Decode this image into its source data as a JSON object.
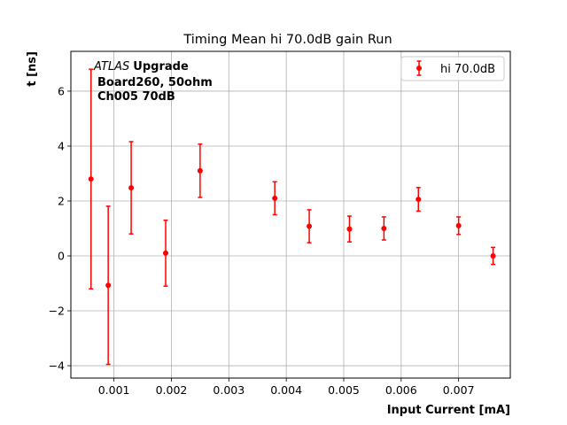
{
  "chart_data": {
    "type": "scatter",
    "title": "Timing Mean hi 70.0dB gain Run",
    "xlabel": "Input Current [mA]",
    "ylabel": "t [ns]",
    "xlim": [
      0.00025,
      0.0079
    ],
    "ylim": [
      -4.45,
      7.45
    ],
    "xticks": [
      0.001,
      0.002,
      0.003,
      0.004,
      0.005,
      0.006,
      0.007
    ],
    "xtick_labels": [
      "0.001",
      "0.002",
      "0.003",
      "0.004",
      "0.005",
      "0.006",
      "0.007"
    ],
    "yticks": [
      -4,
      -2,
      0,
      2,
      4,
      6
    ],
    "ytick_labels": [
      "−4",
      "−2",
      "0",
      "2",
      "4",
      "6"
    ],
    "grid": true,
    "legend_position": "top-right",
    "annotation": {
      "line1_italic": "ATLAS",
      "line1_bold": "Upgrade",
      "line2": "Board260, 50ohm",
      "line3": "Ch005 70dB"
    },
    "series": [
      {
        "name": "hi 70.0dB",
        "color": "#ff0000",
        "points": [
          {
            "x": 0.0006,
            "y": 2.8,
            "err": 4.0
          },
          {
            "x": 0.0009,
            "y": -1.07,
            "err": 2.88
          },
          {
            "x": 0.0013,
            "y": 2.48,
            "err": 1.68
          },
          {
            "x": 0.0019,
            "y": 0.1,
            "err": 1.2
          },
          {
            "x": 0.0025,
            "y": 3.1,
            "err": 0.97
          },
          {
            "x": 0.0038,
            "y": 2.1,
            "err": 0.6
          },
          {
            "x": 0.0044,
            "y": 1.08,
            "err": 0.6
          },
          {
            "x": 0.0051,
            "y": 0.98,
            "err": 0.47
          },
          {
            "x": 0.0057,
            "y": 1.0,
            "err": 0.42
          },
          {
            "x": 0.0063,
            "y": 2.06,
            "err": 0.43
          },
          {
            "x": 0.007,
            "y": 1.1,
            "err": 0.32
          },
          {
            "x": 0.0076,
            "y": 0.0,
            "err": 0.31
          }
        ]
      }
    ]
  }
}
